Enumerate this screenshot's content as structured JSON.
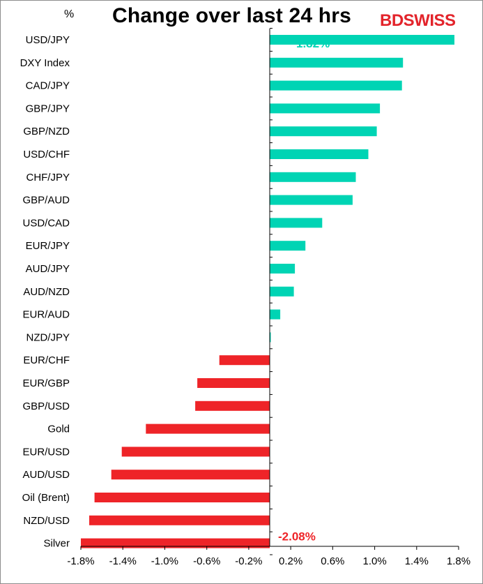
{
  "title": "Change over last 24 hrs",
  "unit_label": "%",
  "logo": {
    "text_bold": "BD",
    "text_rest": "SWISS"
  },
  "colors": {
    "positive": "#00d4b4",
    "negative": "#ee2428",
    "axis": "#000000"
  },
  "chart_data": {
    "type": "bar",
    "orientation": "horizontal",
    "title": "Change over last 24 hrs",
    "ylabel": "%",
    "categories": [
      "USD/JPY",
      "DXY Index",
      "CAD/JPY",
      "GBP/JPY",
      "GBP/NZD",
      "USD/CHF",
      "CHF/JPY",
      "GBP/AUD",
      "USD/CAD",
      "EUR/JPY",
      "AUD/JPY",
      "AUD/NZD",
      "EUR/AUD",
      "NZD/JPY",
      "EUR/CHF",
      "EUR/GBP",
      "GBP/USD",
      "Gold",
      "EUR/USD",
      "AUD/USD",
      "Oil (Brent)",
      "NZD/USD",
      "Silver"
    ],
    "values": [
      1.76,
      1.27,
      1.26,
      1.05,
      1.02,
      0.94,
      0.82,
      0.79,
      0.5,
      0.34,
      0.24,
      0.23,
      0.1,
      0.01,
      -0.48,
      -0.69,
      -0.71,
      -1.18,
      -1.41,
      -1.51,
      -1.67,
      -1.72,
      -1.8
    ],
    "xlim": [
      -1.8,
      1.8
    ],
    "ticks": [
      "-1.8%",
      "-1.4%",
      "-1.0%",
      "-0.6%",
      "-0.2%",
      "0.2%",
      "0.6%",
      "1.0%",
      "1.4%",
      "1.8%"
    ],
    "tick_values": [
      -1.8,
      -1.4,
      -1.0,
      -0.6,
      -0.2,
      0.2,
      0.6,
      1.0,
      1.4,
      1.8
    ],
    "annotations": [
      {
        "text": "1.82%",
        "category": "USD/JPY",
        "color": "#00d4b4"
      },
      {
        "text": "-2.08%",
        "category": "Silver",
        "color": "#ee2428"
      }
    ],
    "grid": false,
    "legend": "none"
  }
}
